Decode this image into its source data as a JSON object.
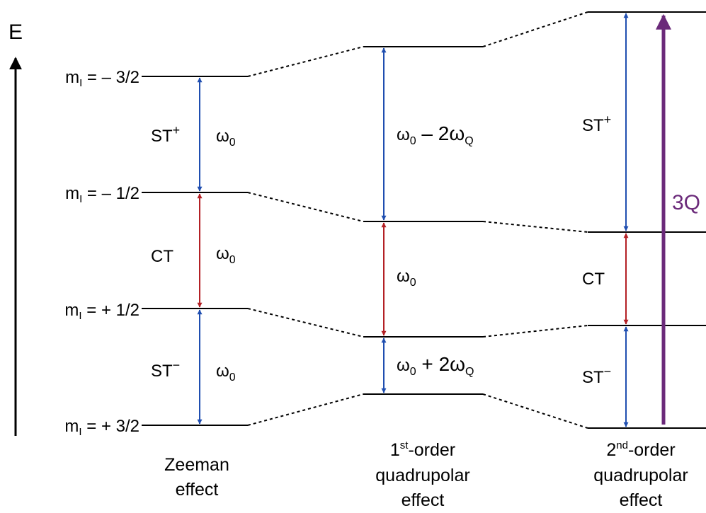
{
  "energy_axis": {
    "label": "E"
  },
  "levels": [
    {
      "m": "m",
      "sub": "I",
      "eq": " = – 3/2"
    },
    {
      "m": "m",
      "sub": "I",
      "eq": " = – 1/2"
    },
    {
      "m": "m",
      "sub": "I",
      "eq": " = + 1/2"
    },
    {
      "m": "m",
      "sub": "I",
      "eq": " = + 3/2"
    }
  ],
  "zeeman": {
    "st_plus": {
      "base": "ST",
      "sup": "+"
    },
    "ct": "CT",
    "st_minus": {
      "base": "ST",
      "sup": "−"
    },
    "freq": {
      "base": "ω",
      "sub": "0"
    },
    "caption": [
      "Zeeman",
      "effect"
    ]
  },
  "first_order": {
    "upper_freq": {
      "base": "ω",
      "sub": "0",
      "op": " – 2ω",
      "op_sub": "Q"
    },
    "middle_freq": {
      "base": "ω",
      "sub": "0"
    },
    "lower_freq": {
      "base": "ω",
      "sub": "0",
      "op": " + 2ω",
      "op_sub": "Q"
    },
    "caption": {
      "num": "1",
      "sup": "st",
      "rest": "-order",
      "line2": "quadrupolar",
      "line3": "effect"
    }
  },
  "second_order": {
    "st_plus": {
      "base": "ST",
      "sup": "+"
    },
    "ct": "CT",
    "st_minus": {
      "base": "ST",
      "sup": "−"
    },
    "three_q": "3Q",
    "caption": {
      "num": "2",
      "sup": "nd",
      "rest": "-order",
      "line2": "quadrupolar",
      "line3": "effect"
    }
  },
  "colors": {
    "satellite": "#1f4eb0",
    "central": "#b32025",
    "triple_quantum": "#6b2a7a",
    "level": "#000000"
  }
}
